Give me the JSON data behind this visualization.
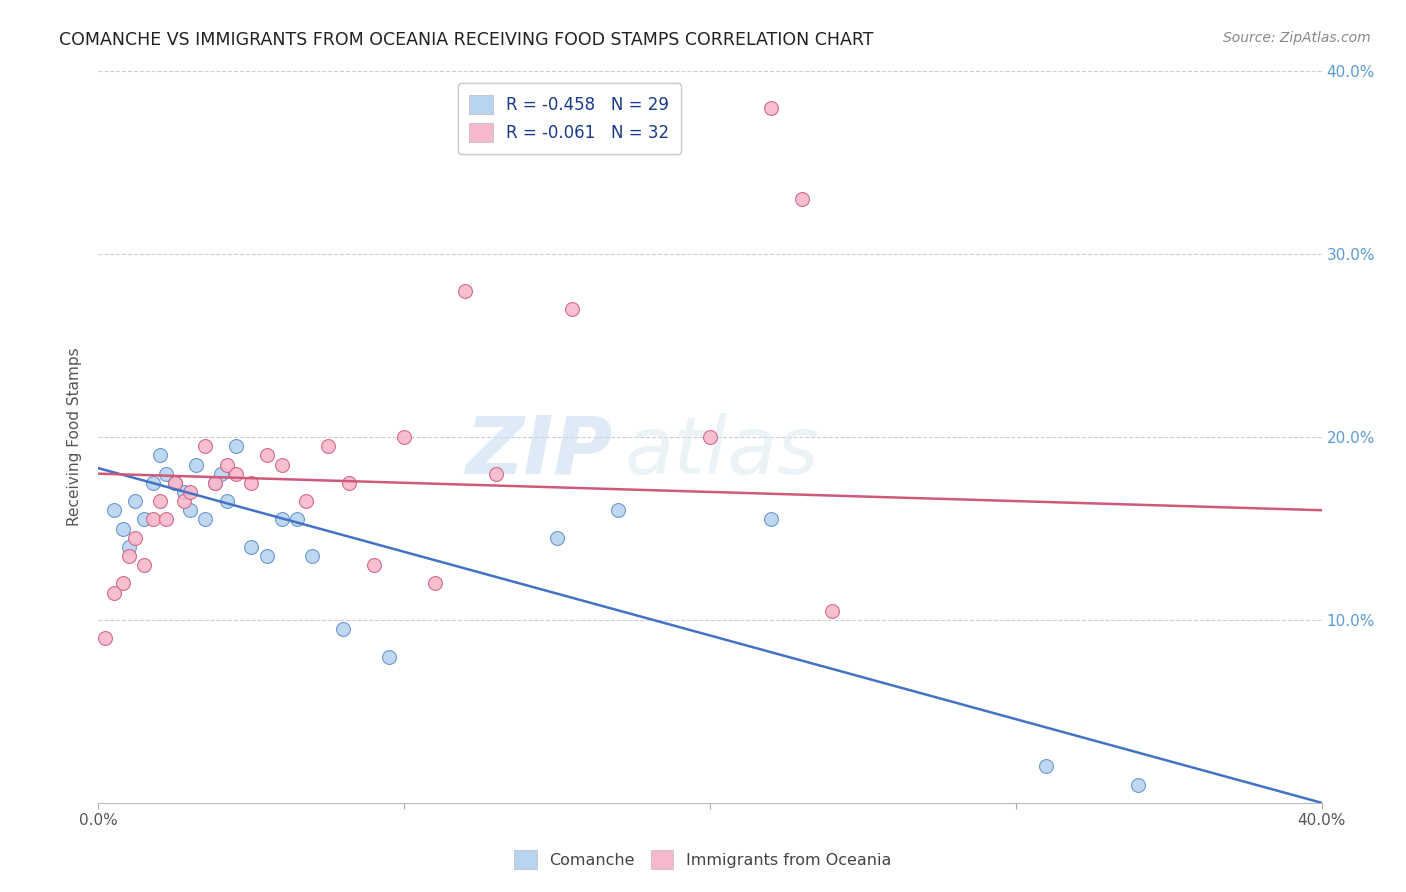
{
  "title": "COMANCHE VS IMMIGRANTS FROM OCEANIA RECEIVING FOOD STAMPS CORRELATION CHART",
  "source": "Source: ZipAtlas.com",
  "ylabel": "Receiving Food Stamps",
  "xlabel": "",
  "watermark_zip": "ZIP",
  "watermark_atlas": "atlas",
  "xlim": [
    0.0,
    0.4
  ],
  "ylim": [
    0.0,
    0.4
  ],
  "xticks": [
    0.0,
    0.1,
    0.2,
    0.3,
    0.4
  ],
  "yticks": [
    0.0,
    0.1,
    0.2,
    0.3,
    0.4
  ],
  "xtick_labels": [
    "0.0%",
    "",
    "",
    "",
    "40.0%"
  ],
  "ytick_labels_right": [
    "",
    "10.0%",
    "20.0%",
    "30.0%",
    "40.0%"
  ],
  "legend_entries": [
    {
      "label": "R = -0.458   N = 29",
      "color": "#b8d4f0"
    },
    {
      "label": "R = -0.061   N = 32",
      "color": "#f8b8cc"
    }
  ],
  "series_comanche": {
    "color": "#b8d4f0",
    "edge_color": "#6090c8",
    "x": [
      0.005,
      0.008,
      0.01,
      0.012,
      0.015,
      0.018,
      0.02,
      0.022,
      0.025,
      0.028,
      0.03,
      0.032,
      0.035,
      0.038,
      0.04,
      0.042,
      0.045,
      0.05,
      0.055,
      0.06,
      0.065,
      0.07,
      0.08,
      0.095,
      0.15,
      0.17,
      0.22,
      0.31,
      0.34
    ],
    "y": [
      0.16,
      0.15,
      0.14,
      0.165,
      0.155,
      0.175,
      0.19,
      0.18,
      0.175,
      0.17,
      0.16,
      0.185,
      0.155,
      0.175,
      0.18,
      0.165,
      0.195,
      0.14,
      0.135,
      0.155,
      0.155,
      0.135,
      0.095,
      0.08,
      0.145,
      0.16,
      0.155,
      0.02,
      0.01
    ]
  },
  "series_oceania": {
    "color": "#f8b8cc",
    "edge_color": "#d06080",
    "x": [
      0.002,
      0.005,
      0.008,
      0.01,
      0.012,
      0.015,
      0.018,
      0.02,
      0.022,
      0.025,
      0.028,
      0.03,
      0.035,
      0.038,
      0.042,
      0.045,
      0.05,
      0.055,
      0.06,
      0.068,
      0.075,
      0.082,
      0.1,
      0.12,
      0.155,
      0.2,
      0.22,
      0.23,
      0.24,
      0.09,
      0.11,
      0.13
    ],
    "y": [
      0.09,
      0.115,
      0.12,
      0.135,
      0.145,
      0.13,
      0.155,
      0.165,
      0.155,
      0.175,
      0.165,
      0.17,
      0.195,
      0.175,
      0.185,
      0.18,
      0.175,
      0.19,
      0.185,
      0.165,
      0.195,
      0.175,
      0.2,
      0.28,
      0.27,
      0.2,
      0.38,
      0.33,
      0.105,
      0.13,
      0.12,
      0.18
    ]
  },
  "line_comanche": {
    "x_start": 0.0,
    "y_start": 0.183,
    "x_end": 0.4,
    "y_end": 0.0,
    "color": "#4472c4"
  },
  "line_oceania": {
    "x_start": 0.0,
    "y_start": 0.18,
    "x_end": 0.4,
    "y_end": 0.16,
    "color": "#d05878"
  },
  "background_color": "#ffffff",
  "grid_color": "#ccccdd",
  "title_color": "#222222",
  "right_axis_color": "#5b9bd5",
  "marker_size": 100
}
